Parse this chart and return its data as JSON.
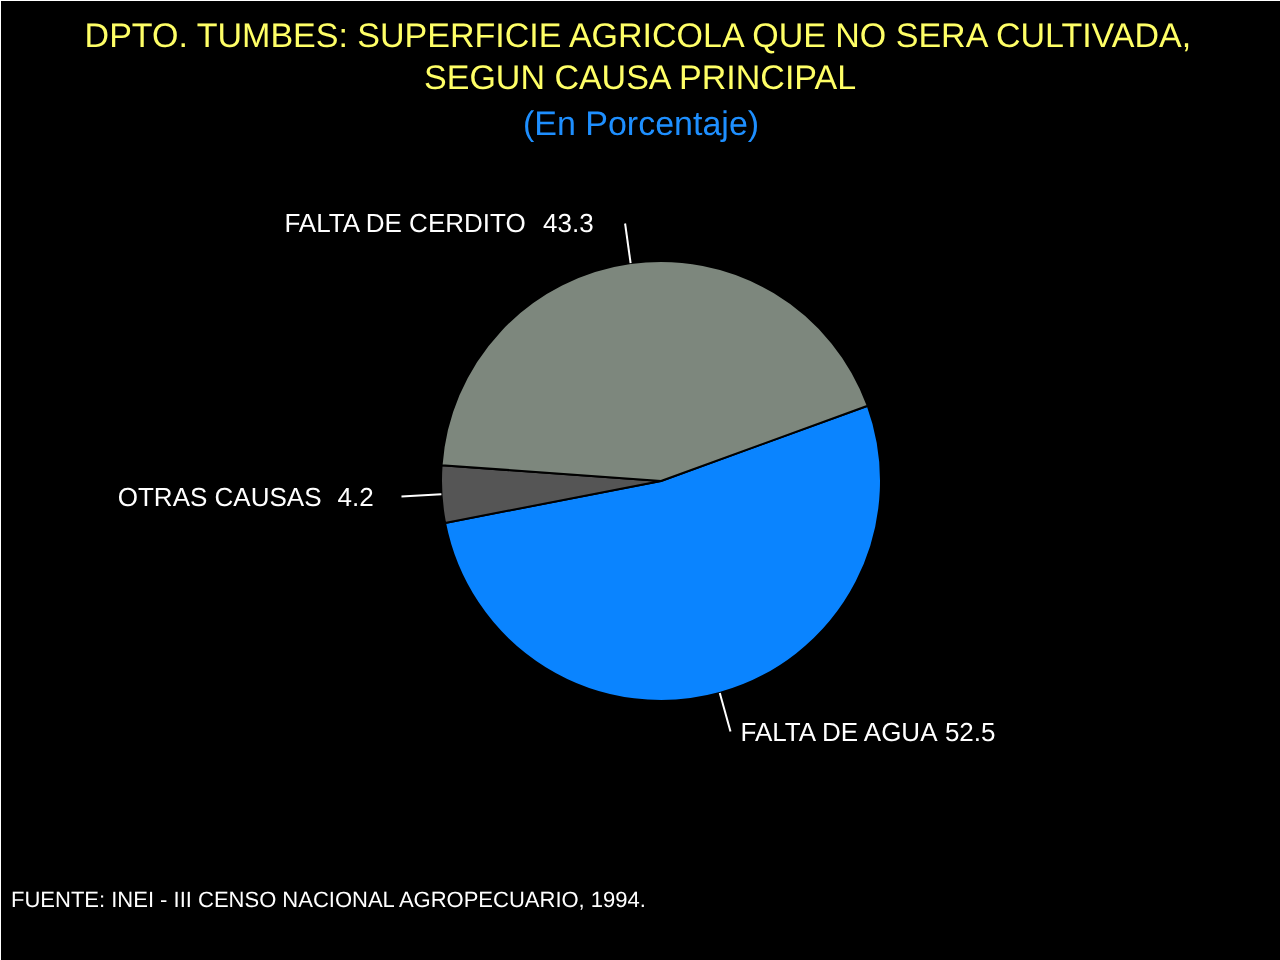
{
  "chart_data": {
    "type": "pie",
    "title": "DPTO. TUMBES: SUPERFICIE AGRICOLA QUE NO SERA CULTIVADA, SEGUN CAUSA PRINCIPAL",
    "subtitle": "(En Porcentaje)",
    "categories": [
      "FALTA DE AGUA",
      "OTRAS CAUSAS",
      "FALTA DE CERDITO"
    ],
    "values": [
      52.5,
      4.2,
      43.3
    ],
    "colors": [
      "#0a84ff",
      "#555555",
      "#7d877d"
    ],
    "data_labels": true,
    "annotations": [
      "FUENTE: INEI - III CENSO NACIONAL AGROPECUARIO, 1994."
    ]
  }
}
